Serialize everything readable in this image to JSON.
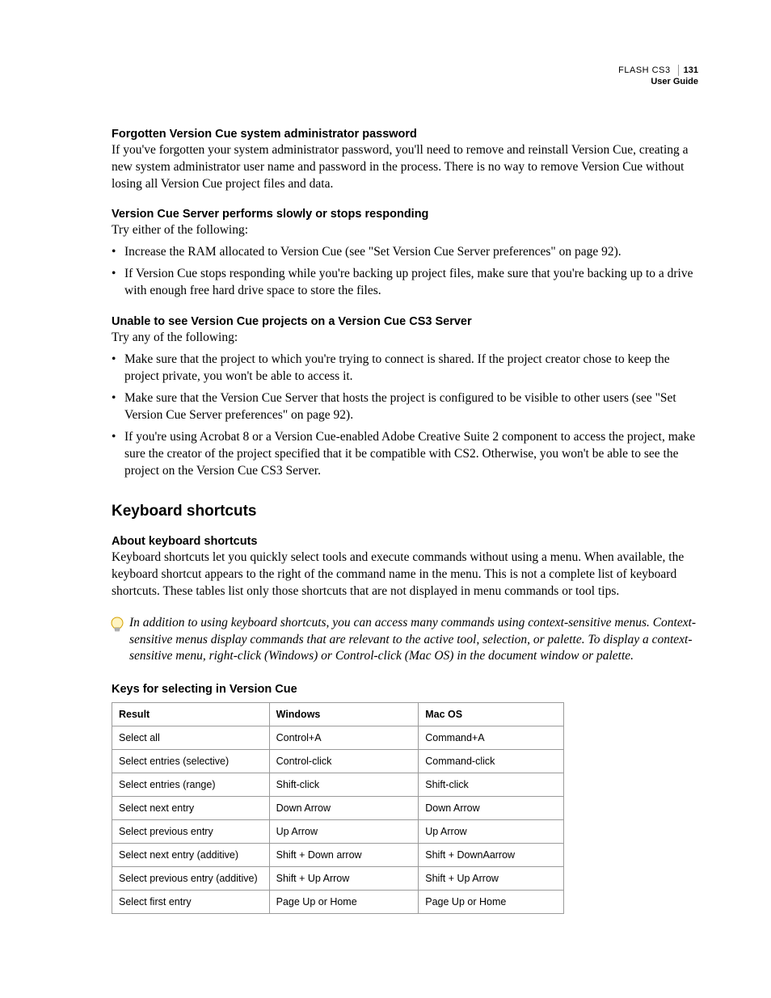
{
  "header": {
    "product": "FLASH CS3",
    "page_number": "131",
    "guide": "User Guide"
  },
  "sections": [
    {
      "heading": "Forgotten Version Cue system administrator password",
      "body": "If you've forgotten your system administrator password, you'll need to remove and reinstall Version Cue, creating a new system administrator user name and password in the process. There is no way to remove Version Cue without losing all Version Cue project files and data."
    },
    {
      "heading": "Version Cue Server performs slowly or stops responding",
      "intro": "Try either of the following:",
      "bullets": [
        "Increase the RAM allocated to Version Cue (see \"Set Version Cue Server preferences\" on page 92).",
        "If Version Cue stops responding while you're backing up project files, make sure that you're backing up to a drive with enough free hard drive space to store the files."
      ]
    },
    {
      "heading": "Unable to see Version Cue projects on a Version Cue CS3 Server",
      "intro": "Try any of the following:",
      "bullets": [
        "Make sure that the project to which you're trying to connect is shared. If the project creator chose to keep the project private, you won't be able to access it.",
        "Make sure that the Version Cue Server that hosts the project is configured to be visible to other users (see \"Set Version Cue Server preferences\" on page 92).",
        "If you're using Acrobat 8 or a Version Cue-enabled Adobe Creative Suite 2 component to access the project, make sure the creator of the project specified that it be compatible with CS2. Otherwise, you won't be able to see the project on the Version Cue CS3 Server."
      ]
    }
  ],
  "major_heading": "Keyboard shortcuts",
  "shortcuts_section": {
    "heading": "About keyboard shortcuts",
    "body": "Keyboard shortcuts let you quickly select tools and execute commands without using a menu. When available, the keyboard shortcut appears to the right of the command name in the menu. This is not a complete list of keyboard shortcuts. These tables list only those shortcuts that are not displayed in menu commands or tool tips.",
    "tip": "In addition to using keyboard shortcuts, you can access many commands using context-sensitive menus. Context-sensitive menus display commands that are relevant to the active tool, selection, or palette. To display a context-sensitive menu, right-click (Windows) or Control-click (Mac OS) in the document window or palette."
  },
  "table": {
    "title": "Keys for selecting in Version Cue",
    "columns": [
      "Result",
      "Windows",
      "Mac OS"
    ],
    "rows": [
      [
        "Select all",
        "Control+A",
        "Command+A"
      ],
      [
        "Select entries (selective)",
        "Control-click",
        "Command-click"
      ],
      [
        "Select entries (range)",
        "Shift-click",
        "Shift-click"
      ],
      [
        "Select next entry",
        "Down Arrow",
        "Down Arrow"
      ],
      [
        "Select previous entry",
        "Up Arrow",
        "Up Arrow"
      ],
      [
        "Select next entry (additive)",
        "Shift + Down arrow",
        "Shift + DownAarrow"
      ],
      [
        "Select previous entry (additive)",
        "Shift + Up Arrow",
        "Shift + Up Arrow"
      ],
      [
        "Select first entry",
        "Page Up or Home",
        "Page Up or Home"
      ]
    ]
  },
  "colors": {
    "text": "#000000",
    "border": "#9a9a9a",
    "bulb_outline": "#d4a000",
    "bulb_fill": "#fff4c2"
  }
}
